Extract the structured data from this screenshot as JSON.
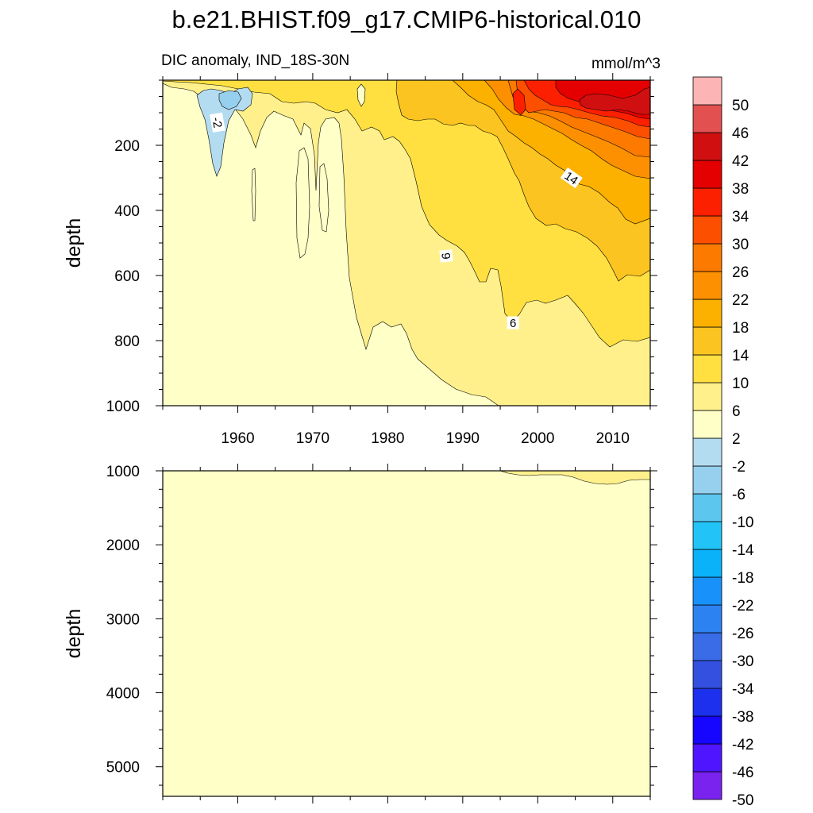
{
  "figure": {
    "title": "b.e21.BHIST.f09_g17.CMIP6-historical.010",
    "left_string": "DIC anomaly, IND_18S-30N",
    "right_string": "mmol/m^3"
  },
  "chart_data": {
    "type": "heatmap",
    "variable": "DIC anomaly",
    "region": "IND_18S-30N",
    "units": "mmol/m^3",
    "x": {
      "range": [
        1950,
        2015
      ],
      "ticks": [
        1960,
        1970,
        1980,
        1990,
        2000,
        2010
      ]
    },
    "panels": [
      {
        "name": "upper",
        "ylabel": "depth",
        "ylim": [
          0,
          1000
        ],
        "yticks": [
          200,
          400,
          600,
          800,
          1000
        ],
        "contour_labels": [
          {
            "text": "-2",
            "x": 1957.3,
            "y": 130,
            "angle": 80
          },
          {
            "text": "14",
            "x": 2004.5,
            "y": 300,
            "angle": 35
          },
          {
            "text": "9",
            "x": 1987.8,
            "y": 540,
            "angle": 85
          },
          {
            "text": "6",
            "x": 1996.7,
            "y": 745,
            "angle": 0
          }
        ]
      },
      {
        "name": "lower",
        "ylabel": "depth",
        "ylim": [
          1000,
          5400
        ],
        "yticks": [
          1000,
          2000,
          3000,
          4000,
          5000
        ]
      }
    ],
    "colorbar": {
      "levels": [
        -50,
        -46,
        -42,
        -38,
        -34,
        -30,
        -26,
        -22,
        -18,
        -14,
        -10,
        -6,
        -2,
        2,
        6,
        10,
        14,
        18,
        22,
        26,
        30,
        34,
        38,
        42,
        46,
        50
      ],
      "labels": [
        "50",
        "46",
        "42",
        "38",
        "34",
        "30",
        "26",
        "22",
        "18",
        "14",
        "10",
        "6",
        "2",
        "-2",
        "-6",
        "-10",
        "-14",
        "-18",
        "-22",
        "-26",
        "-30",
        "-34",
        "-38",
        "-42",
        "-46",
        "-50"
      ],
      "colors": [
        "#7a22ee",
        "#4f15ff",
        "#1606ff",
        "#1c30ee",
        "#3350e0",
        "#3a6ce8",
        "#2d82f2",
        "#1892fa",
        "#0ab2fa",
        "#22c4f8",
        "#5cc6ee",
        "#96d0ee",
        "#b4dcf0",
        "#ffffc8",
        "#fff08c",
        "#ffe040",
        "#fcc420",
        "#fcb000",
        "#fc9000",
        "#fc7a00",
        "#fc5000",
        "#fc2000",
        "#e40000",
        "#d01010",
        "#e25050",
        "#fcb4b4"
      ]
    }
  }
}
